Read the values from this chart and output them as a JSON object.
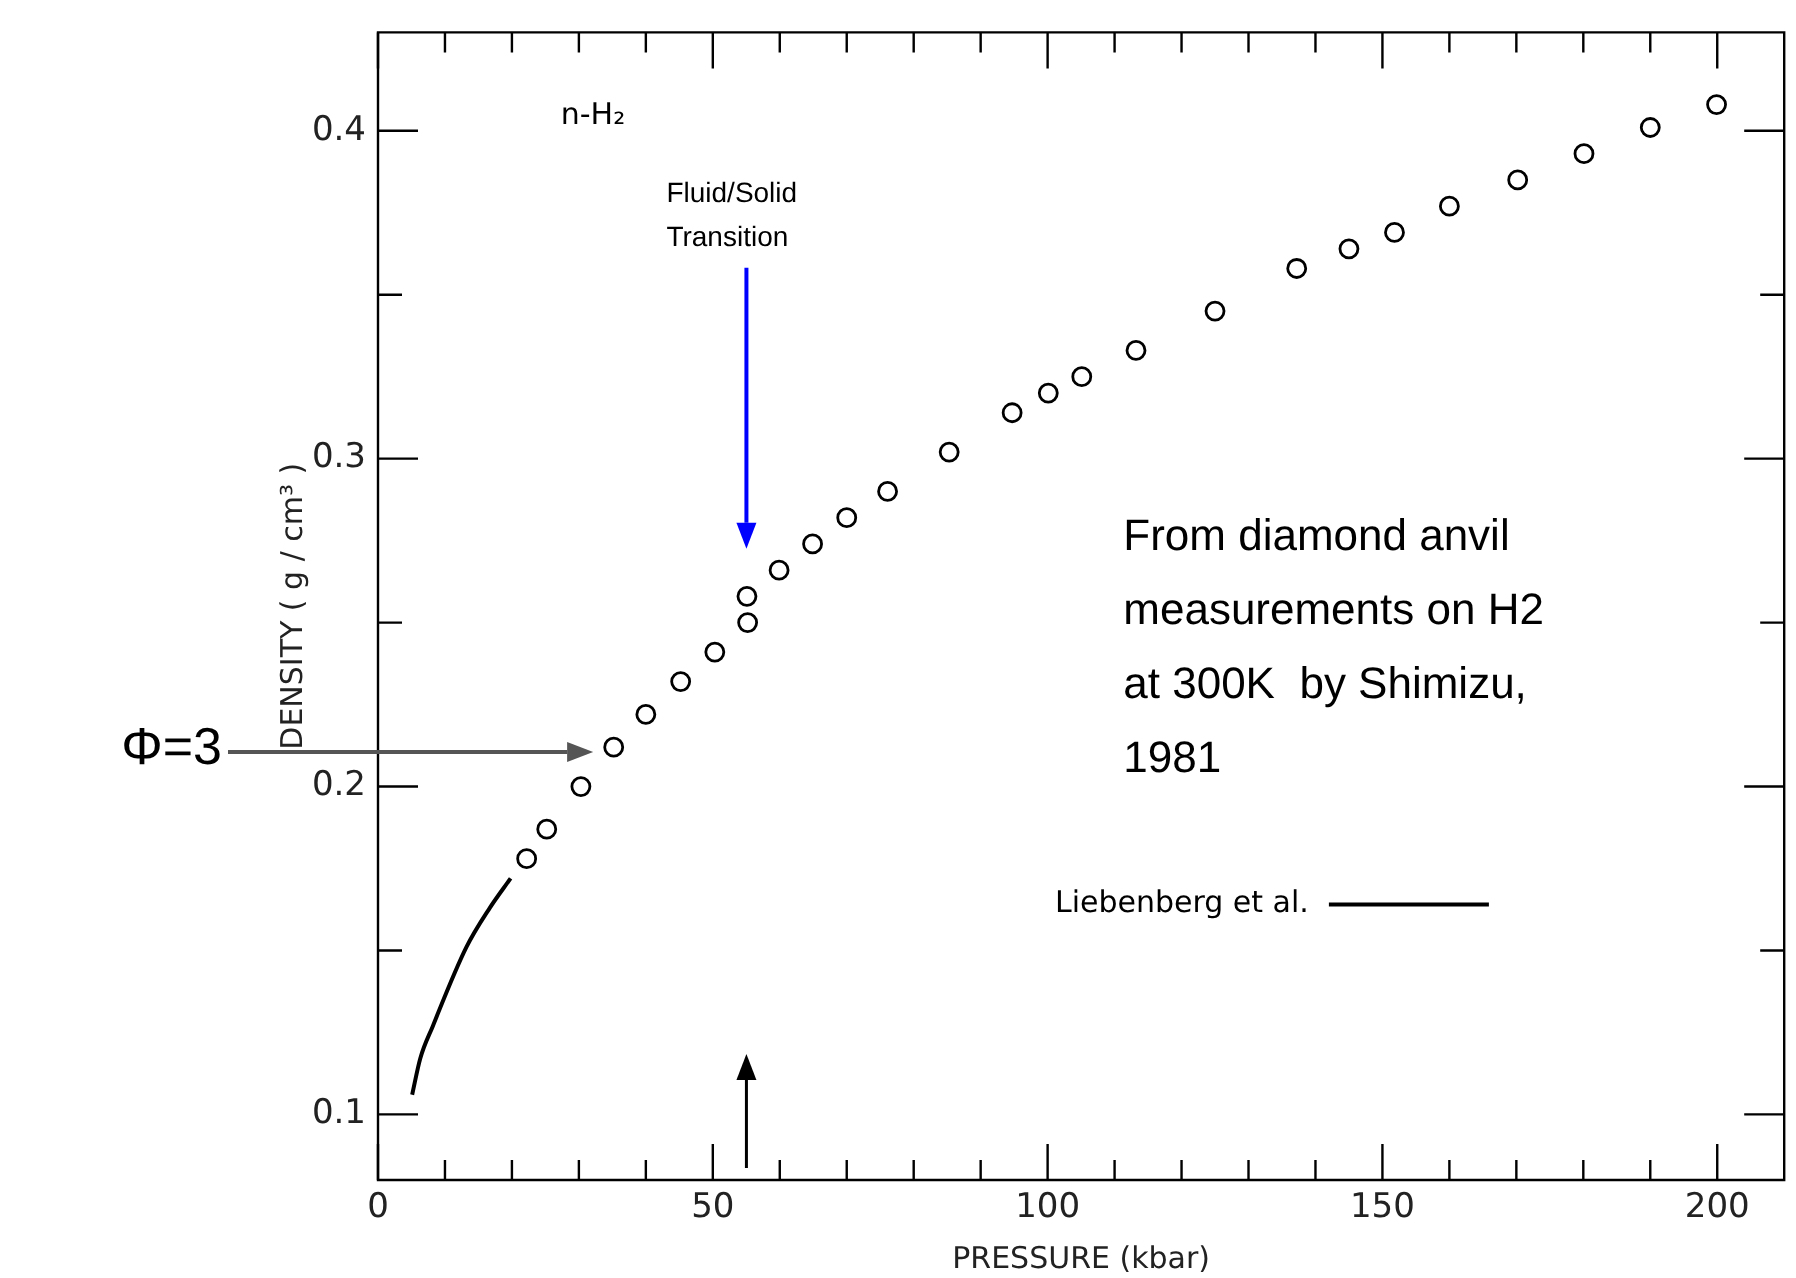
{
  "chart_data": {
    "type": "scatter",
    "xlabel": "PRESSURE (kbar)",
    "ylabel": "DENSITY ( g / cm³ )",
    "xlim": [
      0,
      210
    ],
    "ylim": [
      0.08,
      0.43
    ],
    "xticks": [
      0,
      {
        "value": 10,
        "label": null
      },
      {
        "value": 20,
        "label": null
      },
      {
        "value": 30,
        "label": null
      },
      {
        "value": 40,
        "label": null
      },
      50,
      {
        "value": 60,
        "label": null
      },
      {
        "value": 70,
        "label": null
      },
      {
        "value": 80,
        "label": null
      },
      {
        "value": 90,
        "label": null
      },
      100,
      {
        "value": 110,
        "label": null
      },
      {
        "value": 120,
        "label": null
      },
      {
        "value": 130,
        "label": null
      },
      {
        "value": 140,
        "label": null
      },
      150,
      {
        "value": 160,
        "label": null
      },
      {
        "value": 170,
        "label": null
      },
      {
        "value": 180,
        "label": null
      },
      {
        "value": 190,
        "label": null
      },
      200
    ],
    "yticks": [
      0.1,
      {
        "value": 0.15,
        "label": null
      },
      0.2,
      {
        "value": 0.25,
        "label": null
      },
      0.3,
      {
        "value": 0.35,
        "label": null
      },
      0.4
    ],
    "legend": "right",
    "series": [
      {
        "type": "scatter",
        "marker": "circle",
        "color": "#000000",
        "x": [
          22.2,
          25.2,
          30.3,
          35.2,
          40.0,
          45.2,
          50.3,
          55.2,
          55.1,
          59.9,
          64.9,
          70.0,
          76.1,
          85.3,
          94.7,
          100.1,
          105.1,
          113.2,
          125.0,
          137.2,
          145.0,
          151.8,
          160.0,
          170.2,
          180.1,
          190.0,
          199.9
        ],
        "values": [
          0.178,
          0.187,
          0.2,
          0.212,
          0.222,
          0.232,
          0.241,
          0.25,
          0.258,
          0.266,
          0.274,
          0.282,
          0.29,
          0.302,
          0.314,
          0.32,
          0.325,
          0.333,
          0.345,
          0.358,
          0.364,
          0.369,
          0.377,
          0.385,
          0.393,
          0.401,
          0.408
        ]
      },
      {
        "type": "line",
        "marker": "none",
        "name": "Liebenberg et al.",
        "color": "#000000",
        "x": [
          5.1,
          6.3,
          8.2,
          13.2,
          16.7,
          19.8
        ],
        "values": [
          0.106,
          0.117,
          0.127,
          0.151,
          0.163,
          0.172
        ]
      }
    ],
    "annotations": [
      "n-H₂",
      "Fluid/Solid Transition",
      "Φ=3",
      "From diamond anvil measurements on H2 at 300K  by Shimizu, 1981"
    ]
  }
}
